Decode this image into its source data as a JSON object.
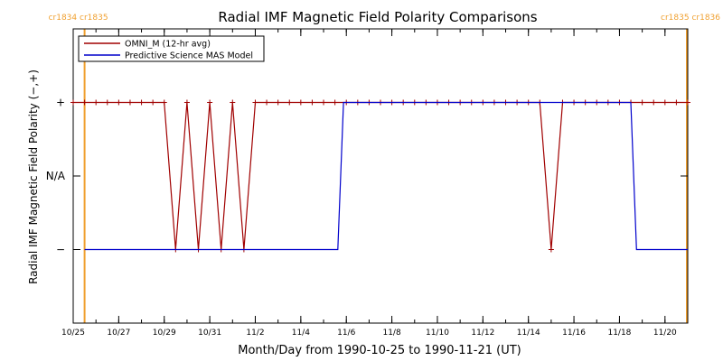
{
  "chart_data": {
    "type": "line",
    "title": "Radial IMF Magnetic Field Polarity Comparisons",
    "xlabel": "Month/Day from 1990-10-25 to 1990-11-21 (UT)",
    "ylabel": "Radial IMF Magnetic Field Polarity (−,+)",
    "x_start": "1990-10-25",
    "x_end": "1990-11-21",
    "xlim": [
      "1990-10-25T00:00",
      "1990-11-21T00:00"
    ],
    "x_ticks": [
      {
        "date": "1990-10-25",
        "label": "10/25"
      },
      {
        "date": "1990-10-27",
        "label": "10/27"
      },
      {
        "date": "1990-10-29",
        "label": "10/29"
      },
      {
        "date": "1990-10-31",
        "label": "10/31"
      },
      {
        "date": "1990-11-02",
        "label": "11/2"
      },
      {
        "date": "1990-11-04",
        "label": "11/4"
      },
      {
        "date": "1990-11-06",
        "label": "11/6"
      },
      {
        "date": "1990-11-08",
        "label": "11/8"
      },
      {
        "date": "1990-11-10",
        "label": "11/10"
      },
      {
        "date": "1990-11-12",
        "label": "11/12"
      },
      {
        "date": "1990-11-14",
        "label": "11/14"
      },
      {
        "date": "1990-11-16",
        "label": "11/16"
      },
      {
        "date": "1990-11-18",
        "label": "11/18"
      },
      {
        "date": "1990-11-20",
        "label": "11/20"
      }
    ],
    "y_ticks": [
      {
        "value": 1,
        "label": "+"
      },
      {
        "value": 0,
        "label": "N/A"
      },
      {
        "value": -1,
        "label": "−"
      }
    ],
    "ylim": [
      -2,
      2
    ],
    "legend": {
      "position": "top-left",
      "entries": [
        {
          "name": "OMNI_M (12-hr avg)",
          "color": "#a00000"
        },
        {
          "name": "Predictive Science MAS Model",
          "color": "#0000cc"
        }
      ]
    },
    "carrington_markers": [
      {
        "date": "1990-10-25T12:00",
        "label": "cr1834 cr1835",
        "color": "#f0a030",
        "align": "left"
      },
      {
        "date": "1990-11-21T00:00",
        "label": "cr1835 cr1836",
        "color": "#f0a030",
        "align": "right"
      }
    ],
    "series": [
      {
        "name": "OMNI_M (12-hr avg)",
        "color": "#a00000",
        "marker": "+",
        "points": [
          [
            "1990-10-25T00:00",
            1
          ],
          [
            "1990-10-25T12:00",
            1
          ],
          [
            "1990-10-26T00:00",
            1
          ],
          [
            "1990-10-26T12:00",
            1
          ],
          [
            "1990-10-27T00:00",
            1
          ],
          [
            "1990-10-27T12:00",
            1
          ],
          [
            "1990-10-28T00:00",
            1
          ],
          [
            "1990-10-28T12:00",
            1
          ],
          [
            "1990-10-29T00:00",
            1
          ],
          [
            "1990-10-29T12:00",
            -1
          ],
          [
            "1990-10-30T00:00",
            1
          ],
          [
            "1990-10-30T12:00",
            -1
          ],
          [
            "1990-10-31T00:00",
            1
          ],
          [
            "1990-10-31T12:00",
            -1
          ],
          [
            "1990-11-01T00:00",
            1
          ],
          [
            "1990-11-01T12:00",
            -1
          ],
          [
            "1990-11-02T00:00",
            1
          ],
          [
            "1990-11-02T12:00",
            1
          ],
          [
            "1990-11-03T00:00",
            1
          ],
          [
            "1990-11-03T12:00",
            1
          ],
          [
            "1990-11-04T00:00",
            1
          ],
          [
            "1990-11-04T12:00",
            1
          ],
          [
            "1990-11-05T00:00",
            1
          ],
          [
            "1990-11-05T12:00",
            1
          ],
          [
            "1990-11-06T00:00",
            1
          ],
          [
            "1990-11-06T12:00",
            1
          ],
          [
            "1990-11-07T00:00",
            1
          ],
          [
            "1990-11-07T12:00",
            1
          ],
          [
            "1990-11-08T00:00",
            1
          ],
          [
            "1990-11-08T12:00",
            1
          ],
          [
            "1990-11-09T00:00",
            1
          ],
          [
            "1990-11-09T12:00",
            1
          ],
          [
            "1990-11-10T00:00",
            1
          ],
          [
            "1990-11-10T12:00",
            1
          ],
          [
            "1990-11-11T00:00",
            1
          ],
          [
            "1990-11-11T12:00",
            1
          ],
          [
            "1990-11-12T00:00",
            1
          ],
          [
            "1990-11-12T12:00",
            1
          ],
          [
            "1990-11-13T00:00",
            1
          ],
          [
            "1990-11-13T12:00",
            1
          ],
          [
            "1990-11-14T00:00",
            1
          ],
          [
            "1990-11-14T12:00",
            1
          ],
          [
            "1990-11-15T00:00",
            -1
          ],
          [
            "1990-11-15T12:00",
            1
          ],
          [
            "1990-11-16T00:00",
            1
          ],
          [
            "1990-11-16T12:00",
            1
          ],
          [
            "1990-11-17T00:00",
            1
          ],
          [
            "1990-11-17T12:00",
            1
          ],
          [
            "1990-11-18T00:00",
            1
          ],
          [
            "1990-11-18T12:00",
            1
          ],
          [
            "1990-11-19T00:00",
            1
          ],
          [
            "1990-11-19T12:00",
            1
          ],
          [
            "1990-11-20T00:00",
            1
          ],
          [
            "1990-11-20T12:00",
            1
          ],
          [
            "1990-11-21T00:00",
            1
          ]
        ]
      },
      {
        "name": "Predictive Science MAS Model",
        "color": "#0000cc",
        "marker": "none",
        "points": [
          [
            "1990-10-25T12:00",
            -1
          ],
          [
            "1990-11-05T15:00",
            -1
          ],
          [
            "1990-11-05T21:00",
            1
          ],
          [
            "1990-11-18T12:00",
            1
          ],
          [
            "1990-11-18T18:00",
            -1
          ],
          [
            "1990-11-21T00:00",
            -1
          ]
        ]
      }
    ]
  }
}
